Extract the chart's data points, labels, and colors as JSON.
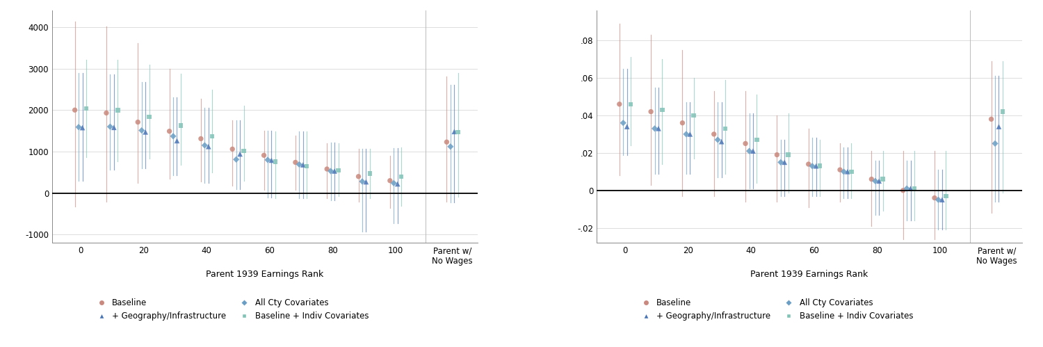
{
  "left": {
    "xlabel": "Parent 1939 Earnings Rank",
    "ylim": [
      -1200,
      4400
    ],
    "yticks": [
      -1000,
      0,
      1000,
      2000,
      3000,
      4000
    ],
    "xtick_positions": [
      0,
      20,
      40,
      60,
      80,
      100,
      118
    ],
    "xtick_labels": [
      "0",
      "20",
      "40",
      "60",
      "80",
      "100",
      "Parent w/\nNo Wages"
    ],
    "series": {
      "baseline": {
        "color": "#c9897e",
        "marker": "o",
        "x": [
          0,
          10,
          20,
          30,
          40,
          50,
          60,
          70,
          80,
          90,
          100,
          118
        ],
        "y": [
          2000,
          1930,
          1710,
          1490,
          1310,
          1060,
          910,
          740,
          580,
          400,
          300,
          1230
        ],
        "ci_low": [
          -320,
          -200,
          250,
          350,
          280,
          180,
          80,
          70,
          -120,
          -200,
          -350,
          -200
        ],
        "ci_high": [
          4130,
          4020,
          3620,
          3000,
          2270,
          1760,
          1500,
          1390,
          1200,
          1070,
          900,
          2800
        ]
      },
      "all_cty": {
        "color": "#6a9ec4",
        "marker": "D",
        "x": [
          0,
          10,
          20,
          30,
          40,
          50,
          60,
          70,
          80,
          90,
          100,
          118
        ],
        "y": [
          1590,
          1600,
          1510,
          1370,
          1150,
          810,
          800,
          690,
          530,
          280,
          240,
          1120
        ],
        "ci_low": [
          290,
          570,
          590,
          430,
          240,
          90,
          -110,
          -120,
          -170,
          -930,
          -720,
          -230
        ],
        "ci_high": [
          2890,
          2860,
          2670,
          2300,
          2060,
          1750,
          1500,
          1490,
          1210,
          1070,
          1090,
          2600
        ]
      },
      "geo_infra": {
        "color": "#4a75b5",
        "marker": "^",
        "x": [
          0,
          10,
          20,
          30,
          40,
          50,
          60,
          70,
          80,
          90,
          100,
          118
        ],
        "y": [
          1575,
          1580,
          1470,
          1260,
          1120,
          940,
          790,
          680,
          530,
          270,
          220,
          1480
        ],
        "ci_low": [
          290,
          570,
          590,
          430,
          240,
          90,
          -110,
          -120,
          -170,
          -930,
          -720,
          -230
        ],
        "ci_high": [
          2890,
          2860,
          2670,
          2300,
          2060,
          1750,
          1500,
          1490,
          1210,
          1070,
          1090,
          2600
        ]
      },
      "indiv_cov": {
        "color": "#82c3b8",
        "marker": "s",
        "x": [
          0,
          10,
          20,
          30,
          40,
          50,
          60,
          70,
          80,
          90,
          100,
          118
        ],
        "y": [
          2040,
          2000,
          1840,
          1630,
          1370,
          1020,
          760,
          650,
          545,
          470,
          400,
          1470
        ],
        "ci_low": [
          870,
          760,
          840,
          680,
          490,
          290,
          -120,
          -130,
          -70,
          -130,
          -310,
          -90
        ],
        "ci_high": [
          3210,
          3210,
          3100,
          2880,
          2490,
          2100,
          1490,
          1490,
          1200,
          1060,
          1100,
          2900
        ]
      }
    }
  },
  "right": {
    "xlabel": "Parent 1939 Earnings Rank",
    "ylim": [
      -0.028,
      0.096
    ],
    "yticks": [
      -0.02,
      0,
      0.02,
      0.04,
      0.06,
      0.08
    ],
    "ytick_labels": [
      "-.02",
      "0",
      ".02",
      ".04",
      ".06",
      ".08"
    ],
    "xtick_positions": [
      0,
      20,
      40,
      60,
      80,
      100,
      118
    ],
    "xtick_labels": [
      "0",
      "20",
      "40",
      "60",
      "80",
      "100",
      "Parent w/\nNo Wages"
    ],
    "series": {
      "baseline": {
        "color": "#c9897e",
        "marker": "o",
        "x": [
          0,
          10,
          20,
          30,
          40,
          50,
          60,
          70,
          80,
          90,
          100,
          118
        ],
        "y": [
          0.046,
          0.042,
          0.036,
          0.03,
          0.025,
          0.019,
          0.014,
          0.011,
          0.006,
          0.0,
          -0.004,
          0.038
        ],
        "ci_low": [
          0.008,
          0.003,
          -0.003,
          -0.003,
          -0.006,
          -0.006,
          -0.009,
          -0.006,
          -0.019,
          -0.026,
          -0.026,
          -0.012
        ],
        "ci_high": [
          0.089,
          0.083,
          0.075,
          0.053,
          0.053,
          0.04,
          0.033,
          0.025,
          0.021,
          0.021,
          0.021,
          0.069
        ]
      },
      "all_cty": {
        "color": "#6a9ec4",
        "marker": "D",
        "x": [
          0,
          10,
          20,
          30,
          40,
          50,
          60,
          70,
          80,
          90,
          100,
          118
        ],
        "y": [
          0.036,
          0.033,
          0.03,
          0.027,
          0.021,
          0.015,
          0.013,
          0.01,
          0.005,
          0.001,
          -0.005,
          0.025
        ],
        "ci_low": [
          0.019,
          0.009,
          0.009,
          0.007,
          0.001,
          -0.003,
          -0.003,
          -0.004,
          -0.013,
          -0.016,
          -0.021,
          -0.006
        ],
        "ci_high": [
          0.065,
          0.055,
          0.047,
          0.047,
          0.041,
          0.027,
          0.028,
          0.023,
          0.016,
          0.016,
          0.011,
          0.061
        ]
      },
      "geo_infra": {
        "color": "#4a75b5",
        "marker": "^",
        "x": [
          0,
          10,
          20,
          30,
          40,
          50,
          60,
          70,
          80,
          90,
          100,
          118
        ],
        "y": [
          0.034,
          0.033,
          0.03,
          0.026,
          0.021,
          0.015,
          0.013,
          0.01,
          0.005,
          0.001,
          -0.005,
          0.034
        ],
        "ci_low": [
          0.019,
          0.009,
          0.009,
          0.007,
          0.001,
          -0.003,
          -0.003,
          -0.004,
          -0.013,
          -0.016,
          -0.021,
          -0.006
        ],
        "ci_high": [
          0.065,
          0.055,
          0.047,
          0.047,
          0.041,
          0.027,
          0.028,
          0.023,
          0.016,
          0.016,
          0.011,
          0.061
        ]
      },
      "indiv_cov": {
        "color": "#82c3b8",
        "marker": "s",
        "x": [
          0,
          10,
          20,
          30,
          40,
          50,
          60,
          70,
          80,
          90,
          100,
          118
        ],
        "y": [
          0.046,
          0.043,
          0.04,
          0.033,
          0.027,
          0.019,
          0.013,
          0.01,
          0.006,
          0.001,
          -0.003,
          0.042
        ],
        "ci_low": [
          0.024,
          0.014,
          0.017,
          0.009,
          0.004,
          -0.001,
          -0.003,
          -0.004,
          -0.011,
          -0.016,
          -0.021,
          -0.001
        ],
        "ci_high": [
          0.071,
          0.07,
          0.06,
          0.059,
          0.051,
          0.041,
          0.027,
          0.025,
          0.021,
          0.021,
          0.021,
          0.069
        ]
      }
    }
  },
  "legend": {
    "baseline_label": "Baseline",
    "all_cty_label": "All Cty Covariates",
    "geo_label": "+ Geography/Infrastructure",
    "indiv_label": "Baseline + Indiv Covariates",
    "baseline_color": "#c9897e",
    "all_cty_color": "#6a9ec4",
    "geo_color": "#4a75b5",
    "indiv_color": "#82c3b8"
  },
  "background_color": "#ffffff",
  "grid_color": "#d8d8d8",
  "font_size": 8.5
}
